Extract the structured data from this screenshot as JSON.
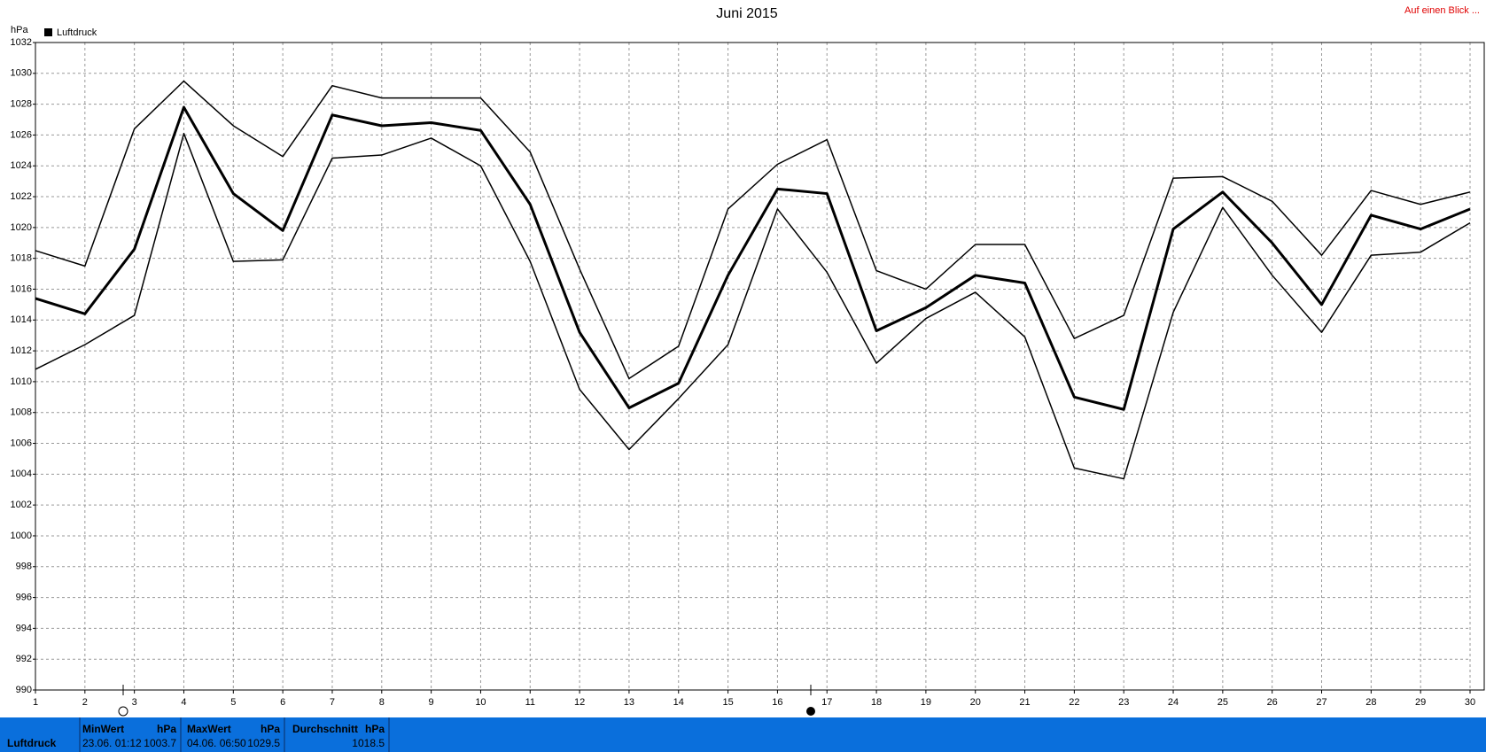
{
  "chart_data": {
    "type": "line",
    "title": "Juni 2015",
    "y_unit": "hPa",
    "corner_link": "Auf einen Blick ...",
    "x": [
      1,
      2,
      3,
      4,
      5,
      6,
      7,
      8,
      9,
      10,
      11,
      12,
      13,
      14,
      15,
      16,
      17,
      18,
      19,
      20,
      21,
      22,
      23,
      24,
      25,
      26,
      27,
      28,
      29,
      30
    ],
    "xlim": [
      1,
      30
    ],
    "xticks": [
      1,
      2,
      3,
      4,
      5,
      6,
      7,
      8,
      9,
      10,
      11,
      12,
      13,
      14,
      15,
      16,
      17,
      18,
      19,
      20,
      21,
      22,
      23,
      24,
      25,
      26,
      27,
      28,
      29,
      30
    ],
    "ylim": [
      990,
      1032
    ],
    "yticks": [
      990,
      992,
      994,
      996,
      998,
      1000,
      1002,
      1004,
      1006,
      1008,
      1010,
      1012,
      1014,
      1016,
      1018,
      1020,
      1022,
      1024,
      1026,
      1028,
      1030,
      1032
    ],
    "grid": true,
    "legend": "top-left",
    "series": [
      {
        "name": "Luftdruck",
        "color": "#000000",
        "width": 3,
        "values": [
          1015.4,
          1014.4,
          1018.6,
          1027.8,
          1022.2,
          1019.8,
          1027.3,
          1026.6,
          1026.8,
          1026.3,
          1021.5,
          1013.2,
          1008.3,
          1009.9,
          1016.9,
          1022.5,
          1022.2,
          1013.3,
          1014.8,
          1016.9,
          1016.4,
          1009.0,
          1008.2,
          1019.9,
          1022.3,
          1019.0,
          1015.0,
          1020.8,
          1019.9,
          1021.2
        ]
      },
      {
        "color": "#000000",
        "width": 1.5,
        "values": [
          1018.5,
          1017.5,
          1026.4,
          1029.5,
          1026.6,
          1024.6,
          1029.2,
          1028.4,
          1028.4,
          1028.4,
          1024.9,
          1017.3,
          1010.2,
          1012.3,
          1021.2,
          1024.1,
          1025.7,
          1017.2,
          1016.0,
          1018.9,
          1018.9,
          1012.8,
          1014.3,
          1023.2,
          1023.3,
          1021.7,
          1018.2,
          1022.4,
          1021.5,
          1022.3
        ]
      },
      {
        "color": "#000000",
        "width": 1.5,
        "values": [
          1010.8,
          1012.4,
          1014.3,
          1026.1,
          1017.8,
          1017.9,
          1024.5,
          1024.7,
          1025.8,
          1024.0,
          1017.8,
          1009.5,
          1005.6,
          1008.9,
          1012.4,
          1021.2,
          1017.1,
          1011.2,
          1014.1,
          1015.8,
          1012.9,
          1004.4,
          1003.7,
          1014.5,
          1021.3,
          1016.9,
          1013.2,
          1018.2,
          1018.4,
          1020.3
        ]
      }
    ]
  },
  "summary": {
    "label": "Luftdruck",
    "min": {
      "title": "MinWert",
      "unit": "hPa",
      "time": "23.06.  01:12",
      "value": "1003.7"
    },
    "max": {
      "title": "MaxWert",
      "unit": "hPa",
      "time": "04.06.  06:50",
      "value": "1029.5"
    },
    "avg": {
      "title": "Durchschnitt",
      "unit": "hPa",
      "value": "1018.5"
    }
  }
}
